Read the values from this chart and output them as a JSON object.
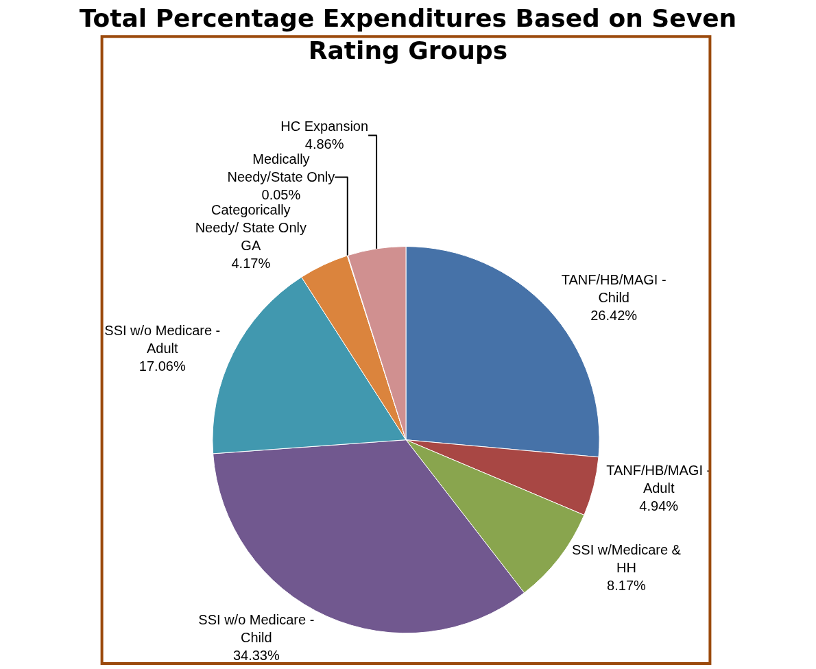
{
  "chart_data": {
    "type": "pie",
    "title": "Total Percentage Expenditures Based on Seven Rating Groups",
    "categories": [
      "TANF/HB/MAGI - Child",
      "TANF/HB/MAGI - Adult",
      "SSI w/Medicare & HH",
      "SSI w/o Medicare - Child",
      "SSI w/o Medicare - Adult",
      "Categorically Needy/ State Only GA",
      "Medically Needy/State Only",
      "HC Expansion"
    ],
    "values": [
      26.42,
      4.94,
      8.17,
      34.33,
      17.06,
      4.17,
      0.05,
      4.86
    ],
    "value_labels": [
      "26.42%",
      "4.94%",
      "8.17%",
      "34.33%",
      "17.06%",
      "4.17%",
      "0.05%",
      "4.86%"
    ],
    "colors": [
      "#4672a8",
      "#a84744",
      "#89a54e",
      "#71588f",
      "#4198af",
      "#db843d",
      "#93a9cf",
      "#d09090"
    ],
    "legend": false
  }
}
